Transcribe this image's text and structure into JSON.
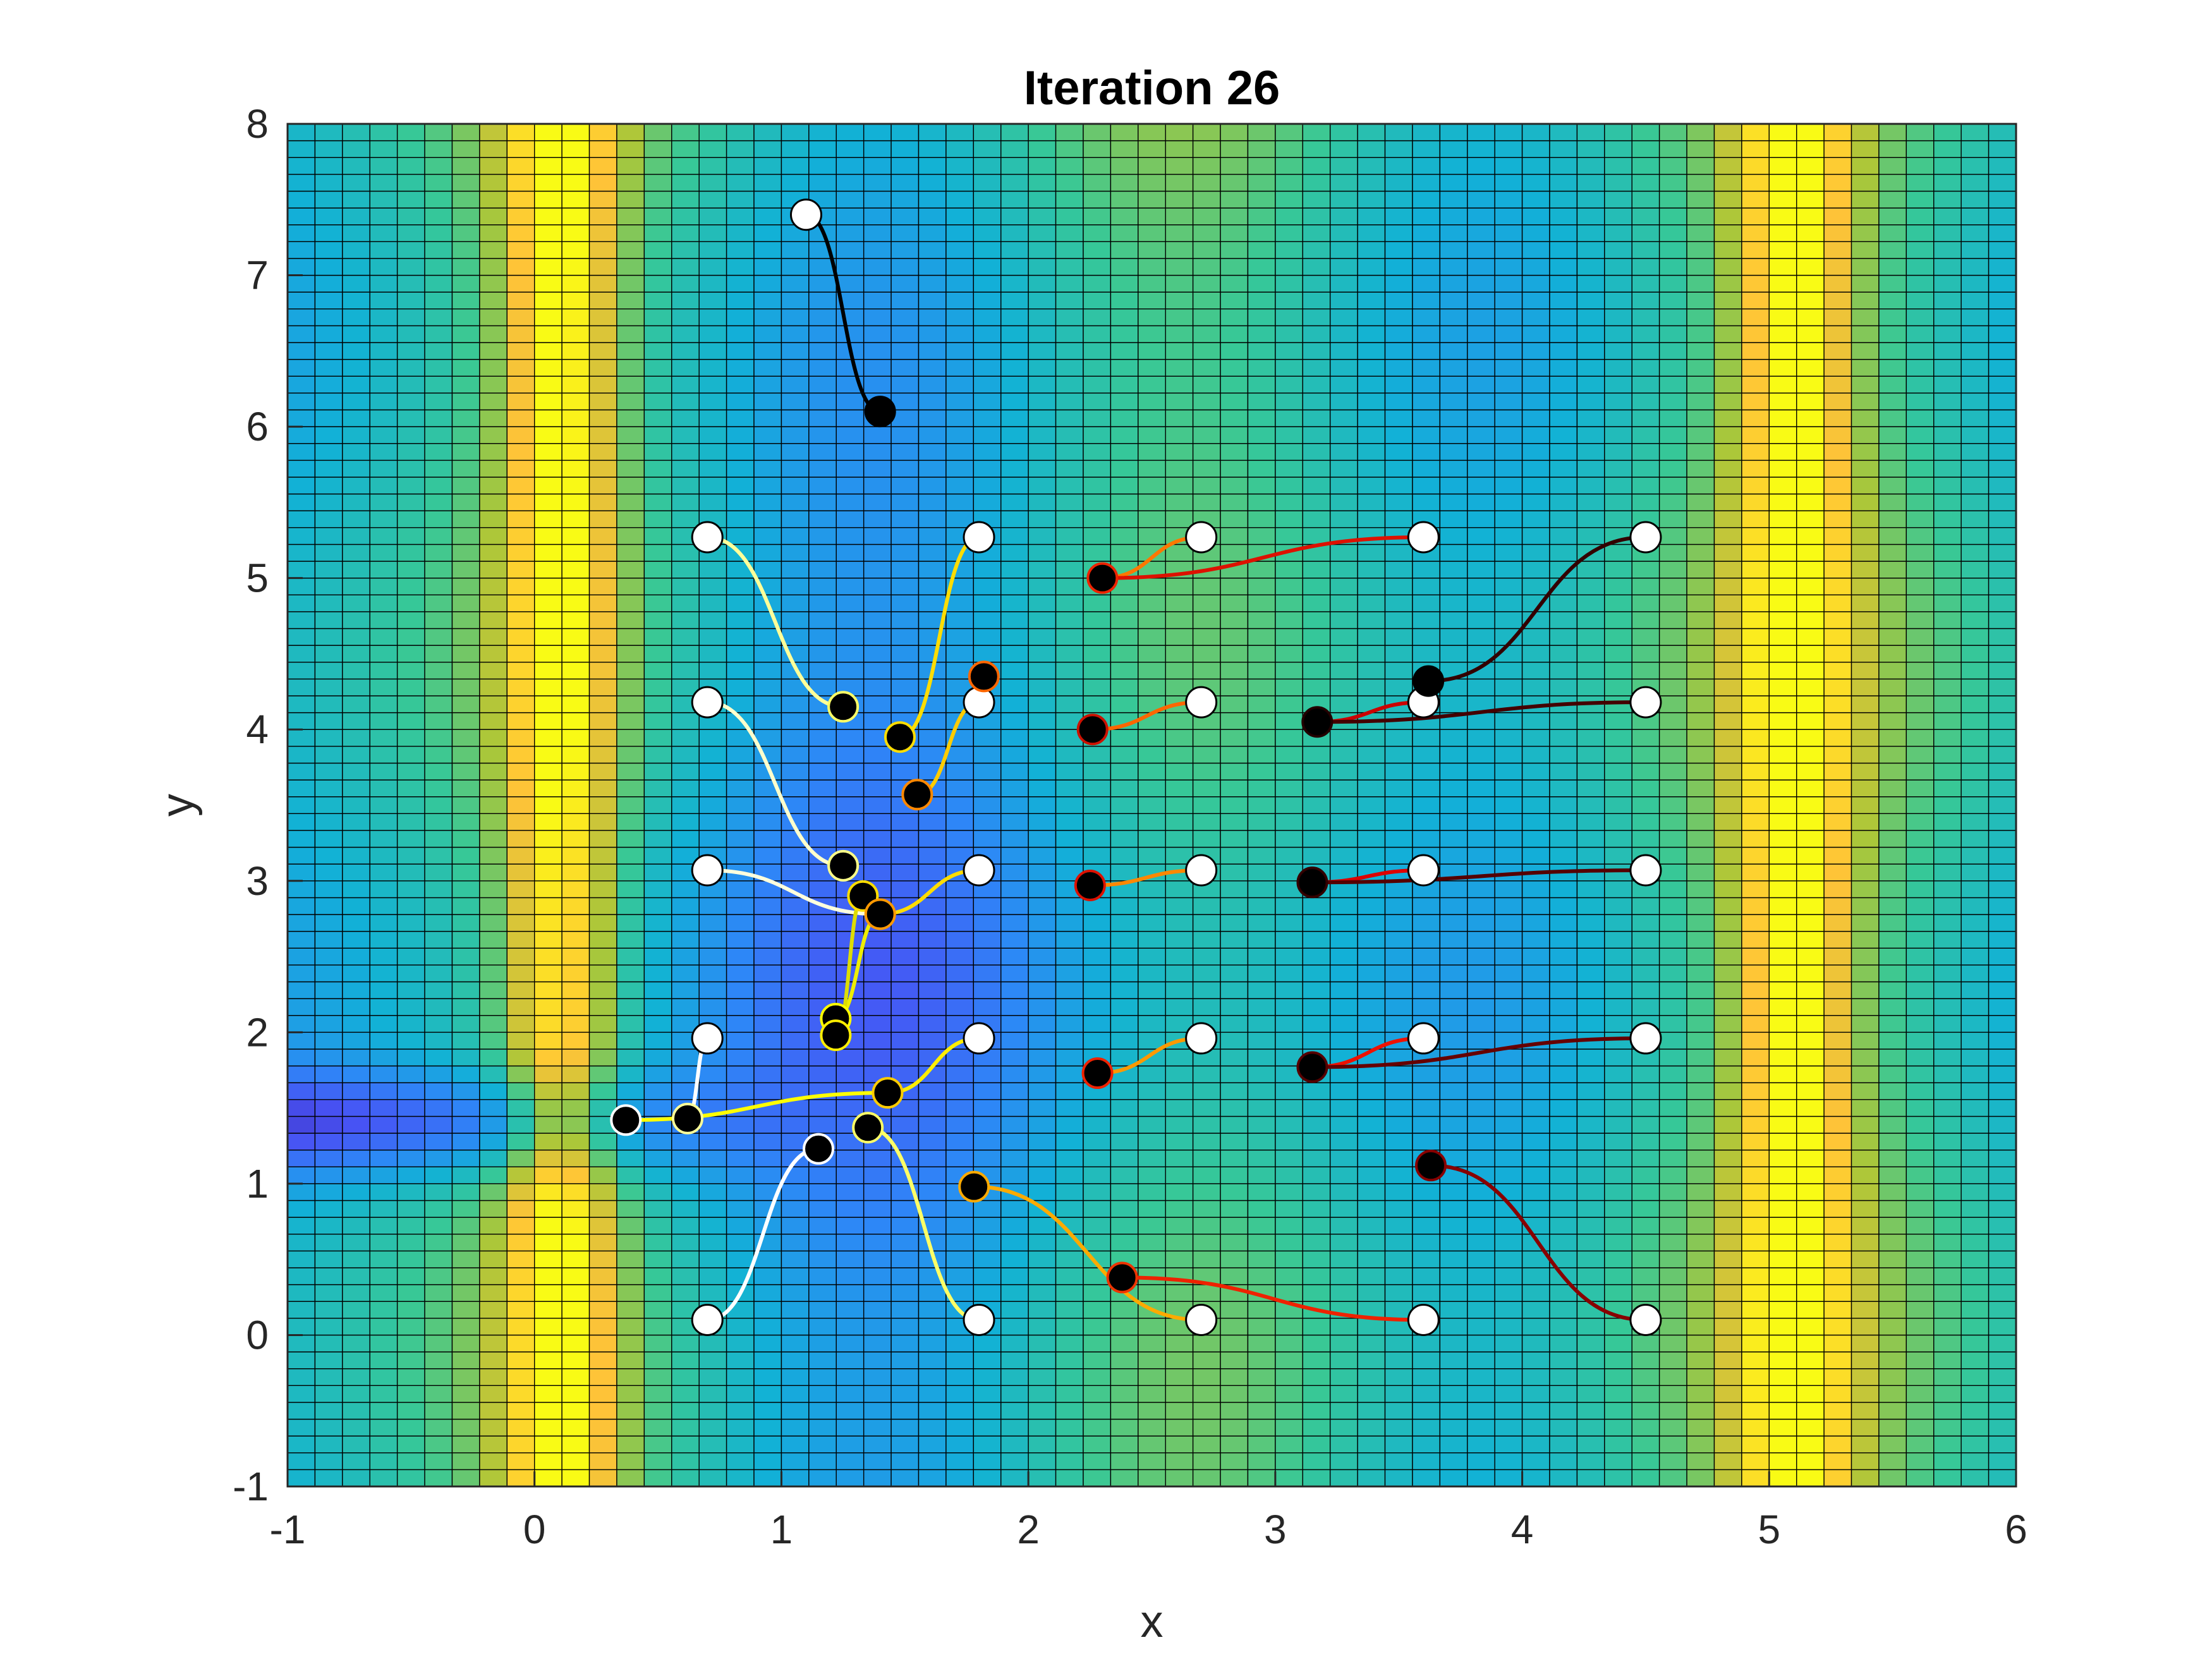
{
  "chart_data": {
    "type": "heatmap",
    "title": "Iteration 26",
    "xlabel": "x",
    "ylabel": "y",
    "xlim": [
      -1,
      6
    ],
    "ylim": [
      -1,
      8
    ],
    "xticks": [
      "-1",
      "0",
      "1",
      "2",
      "3",
      "4",
      "5",
      "6"
    ],
    "yticks": [
      "-1",
      "0",
      "1",
      "2",
      "3",
      "4",
      "5",
      "6",
      "7",
      "8"
    ],
    "grid": true,
    "colormap": "parula",
    "field": {
      "x_step": 0.1111,
      "y_step": 0.1111,
      "high_value_bands_x": [
        0.1,
        5.1
      ],
      "low_value_valley": {
        "x_from": -1,
        "x_to": 1.2,
        "y": 1.4
      }
    },
    "paths": [
      {
        "start": [
          1.1,
          7.4
        ],
        "end": [
          1.4,
          6.1
        ],
        "color": "#000000"
      },
      {
        "start": [
          0.7,
          5.27
        ],
        "end": [
          1.25,
          4.15
        ],
        "color": "#ffff99"
      },
      {
        "start": [
          1.8,
          5.27
        ],
        "end": [
          1.48,
          3.95
        ],
        "color": "#ffdd00"
      },
      {
        "start": [
          2.7,
          5.27
        ],
        "end": [
          2.3,
          5.0
        ],
        "color": "#ff7700"
      },
      {
        "start": [
          3.6,
          5.27
        ],
        "end": [
          2.3,
          5.0
        ],
        "color": "#dd1100"
      },
      {
        "start": [
          4.5,
          5.27
        ],
        "end": [
          3.62,
          4.32
        ],
        "color": "#330000"
      },
      {
        "start": [
          0.7,
          4.18
        ],
        "end": [
          1.25,
          3.1
        ],
        "color": "#ffffcc"
      },
      {
        "start": [
          1.8,
          4.18
        ],
        "end": [
          1.55,
          3.57
        ],
        "color": "#ffcc00"
      },
      {
        "start": [
          2.7,
          4.18
        ],
        "end": [
          2.26,
          4.0
        ],
        "color": "#ff6600"
      },
      {
        "start": [
          3.6,
          4.18
        ],
        "end": [
          3.17,
          4.05
        ],
        "color": "#cc0000"
      },
      {
        "start": [
          4.5,
          4.18
        ],
        "end": [
          3.17,
          4.05
        ],
        "color": "#440000"
      },
      {
        "start": [
          0.7,
          3.07
        ],
        "end": [
          1.4,
          2.78
        ],
        "color": "#ffffdd"
      },
      {
        "start": [
          1.8,
          3.07
        ],
        "end": [
          1.4,
          2.78
        ],
        "color": "#ffdd00"
      },
      {
        "start": [
          2.7,
          3.07
        ],
        "end": [
          2.25,
          2.97
        ],
        "color": "#ff8800"
      },
      {
        "start": [
          3.6,
          3.07
        ],
        "end": [
          3.15,
          2.99
        ],
        "color": "#dd0000"
      },
      {
        "start": [
          4.5,
          3.07
        ],
        "end": [
          3.15,
          2.99
        ],
        "color": "#550000"
      },
      {
        "start": [
          0.7,
          1.96
        ],
        "end": [
          0.62,
          1.43
        ],
        "color": "#ffffff"
      },
      {
        "start": [
          1.8,
          1.96
        ],
        "end": [
          1.43,
          1.6
        ],
        "color": "#ffee00"
      },
      {
        "start": [
          2.7,
          1.96
        ],
        "end": [
          2.28,
          1.73
        ],
        "color": "#ff9900"
      },
      {
        "start": [
          3.6,
          1.96
        ],
        "end": [
          3.15,
          1.77
        ],
        "color": "#ee1100"
      },
      {
        "start": [
          4.5,
          1.96
        ],
        "end": [
          3.15,
          1.77
        ],
        "color": "#660000"
      },
      {
        "start": [
          0.7,
          0.1
        ],
        "end": [
          1.15,
          1.23
        ],
        "color": "#ffffff"
      },
      {
        "start": [
          1.8,
          0.1
        ],
        "end": [
          1.35,
          1.37
        ],
        "color": "#ffff66"
      },
      {
        "start": [
          2.7,
          0.1
        ],
        "end": [
          1.78,
          0.98
        ],
        "color": "#ffaa00"
      },
      {
        "start": [
          3.6,
          0.1
        ],
        "end": [
          2.38,
          0.38
        ],
        "color": "#ee2200"
      },
      {
        "start": [
          4.5,
          0.1
        ],
        "end": [
          3.63,
          1.12
        ],
        "color": "#880000"
      },
      {
        "start": [
          1.43,
          1.6
        ],
        "end": [
          0.37,
          1.42
        ],
        "color": "#ffff00"
      },
      {
        "start": [
          1.4,
          2.78
        ],
        "end": [
          1.22,
          2.09
        ],
        "color": "#eeee00"
      },
      {
        "start": [
          1.33,
          2.9
        ],
        "end": [
          1.22,
          1.98
        ],
        "color": "#dddd00"
      }
    ],
    "start_points": [
      [
        1.1,
        7.4
      ],
      [
        0.7,
        5.27
      ],
      [
        1.8,
        5.27
      ],
      [
        2.7,
        5.27
      ],
      [
        3.6,
        5.27
      ],
      [
        4.5,
        5.27
      ],
      [
        0.7,
        4.18
      ],
      [
        1.8,
        4.18
      ],
      [
        2.7,
        4.18
      ],
      [
        3.6,
        4.18
      ],
      [
        4.5,
        4.18
      ],
      [
        0.7,
        3.07
      ],
      [
        1.8,
        3.07
      ],
      [
        2.7,
        3.07
      ],
      [
        3.6,
        3.07
      ],
      [
        4.5,
        3.07
      ],
      [
        0.7,
        1.96
      ],
      [
        1.8,
        1.96
      ],
      [
        2.7,
        1.96
      ],
      [
        3.6,
        1.96
      ],
      [
        4.5,
        1.96
      ],
      [
        0.7,
        0.1
      ],
      [
        1.8,
        0.1
      ],
      [
        2.7,
        0.1
      ],
      [
        3.6,
        0.1
      ],
      [
        4.5,
        0.1
      ]
    ],
    "current_points": [
      {
        "pos": [
          1.4,
          6.1
        ],
        "edge": "#000000"
      },
      {
        "pos": [
          1.25,
          4.15
        ],
        "edge": "#ffff66"
      },
      {
        "pos": [
          1.48,
          3.95
        ],
        "edge": "#ffdd00"
      },
      {
        "pos": [
          1.82,
          4.35
        ],
        "edge": "#ff6600"
      },
      {
        "pos": [
          2.3,
          5.0
        ],
        "edge": "#ee2200"
      },
      {
        "pos": [
          3.62,
          4.32
        ],
        "edge": "#000000"
      },
      {
        "pos": [
          1.25,
          3.1
        ],
        "edge": "#ffff88"
      },
      {
        "pos": [
          1.55,
          3.57
        ],
        "edge": "#ff8800"
      },
      {
        "pos": [
          2.26,
          4.0
        ],
        "edge": "#cc1100"
      },
      {
        "pos": [
          3.17,
          4.05
        ],
        "edge": "#220000"
      },
      {
        "pos": [
          1.33,
          2.9
        ],
        "edge": "#ffdd00"
      },
      {
        "pos": [
          1.4,
          2.78
        ],
        "edge": "#ff9900"
      },
      {
        "pos": [
          2.25,
          2.97
        ],
        "edge": "#dd1100"
      },
      {
        "pos": [
          3.15,
          2.99
        ],
        "edge": "#330000"
      },
      {
        "pos": [
          1.22,
          2.09
        ],
        "edge": "#ffff00"
      },
      {
        "pos": [
          1.22,
          1.98
        ],
        "edge": "#ffee00"
      },
      {
        "pos": [
          0.37,
          1.42
        ],
        "edge": "#ffffff"
      },
      {
        "pos": [
          0.62,
          1.43
        ],
        "edge": "#ffff99"
      },
      {
        "pos": [
          1.43,
          1.6
        ],
        "edge": "#ffcc00"
      },
      {
        "pos": [
          2.28,
          1.73
        ],
        "edge": "#ee2200"
      },
      {
        "pos": [
          3.15,
          1.77
        ],
        "edge": "#550000"
      },
      {
        "pos": [
          1.15,
          1.23
        ],
        "edge": "#ffffff"
      },
      {
        "pos": [
          1.35,
          1.37
        ],
        "edge": "#ffff66"
      },
      {
        "pos": [
          1.78,
          0.98
        ],
        "edge": "#ffaa00"
      },
      {
        "pos": [
          2.38,
          0.38
        ],
        "edge": "#ee3300"
      },
      {
        "pos": [
          3.63,
          1.12
        ],
        "edge": "#880000"
      }
    ]
  }
}
